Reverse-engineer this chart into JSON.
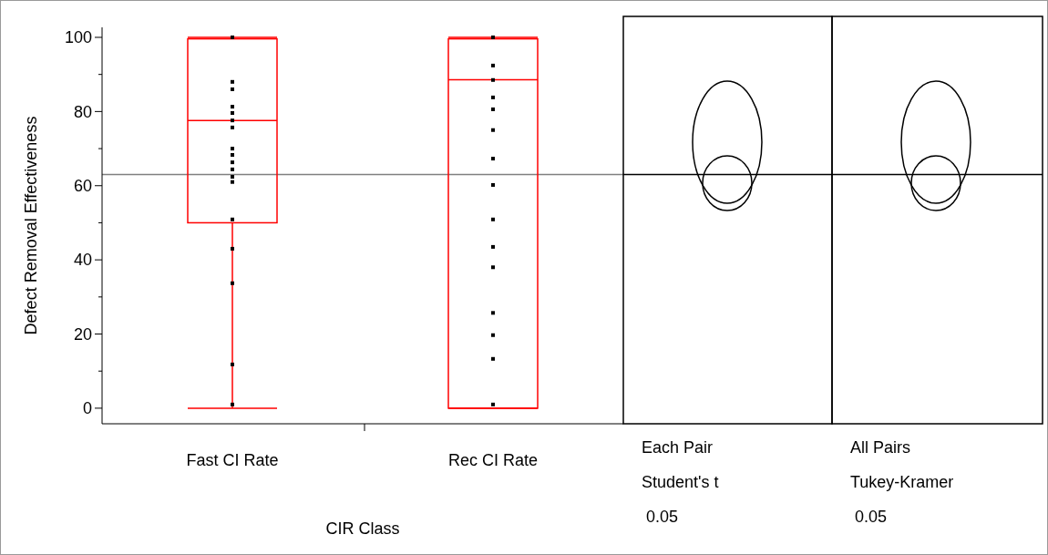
{
  "chart_data": {
    "type": "box",
    "xlabel": "CIR Class",
    "ylabel": "Defect Removal Effectiveness",
    "categories": [
      "Fast CI Rate",
      "Rec CI Rate"
    ],
    "boxes": [
      {
        "low": 0,
        "q1": 50,
        "median": 77.6,
        "q3": 99.6,
        "high": 100
      },
      {
        "low": 0,
        "q1": 0,
        "median": 88.6,
        "q3": 99.6,
        "high": 100
      }
    ],
    "color": "#ff0000",
    "series": [
      {
        "type": "scatter",
        "color": "#000000",
        "x": [
          "Fast CI Rate",
          "Fast CI Rate",
          "Fast CI Rate",
          "Fast CI Rate",
          "Fast CI Rate",
          "Fast CI Rate",
          "Fast CI Rate",
          "Fast CI Rate",
          "Fast CI Rate",
          "Fast CI Rate",
          "Fast CI Rate",
          "Fast CI Rate",
          "Fast CI Rate",
          "Fast CI Rate",
          "Fast CI Rate",
          "Fast CI Rate",
          "Fast CI Rate",
          "Fast CI Rate"
        ],
        "values": [
          100,
          88,
          86,
          81.3,
          79.6,
          77.6,
          75.7,
          70,
          68.3,
          66.3,
          64.4,
          62.4,
          61,
          50.9,
          43,
          33.7,
          11.8,
          1
        ]
      },
      {
        "type": "scatter",
        "color": "#000000",
        "x": [
          "Rec CI Rate",
          "Rec CI Rate",
          "Rec CI Rate",
          "Rec CI Rate",
          "Rec CI Rate",
          "Rec CI Rate",
          "Rec CI Rate",
          "Rec CI Rate",
          "Rec CI Rate",
          "Rec CI Rate",
          "Rec CI Rate",
          "Rec CI Rate",
          "Rec CI Rate",
          "Rec CI Rate",
          "Rec CI Rate"
        ],
        "values": [
          100,
          92.4,
          88.5,
          83.8,
          80.6,
          75,
          67.3,
          60.2,
          50.9,
          43.5,
          38,
          25.7,
          19.7,
          13.3,
          1
        ]
      }
    ],
    "marker": "square",
    "ylim": [
      -4.2,
      102.7
    ],
    "yticks": [
      0,
      {
        "value": 10,
        "label": null
      },
      20,
      {
        "value": 30,
        "label": null
      },
      40,
      {
        "value": 50,
        "label": null
      },
      60,
      {
        "value": 70,
        "label": null
      },
      80,
      {
        "value": 90,
        "label": null
      },
      100
    ],
    "ref_lines": [
      {
        "axis": "y",
        "value": 63,
        "color": "#808080"
      }
    ],
    "annotations": [
      "Each Pair\nStudent's t\n 0.05",
      "All Pairs\nTukey-Kramer\n 0.05"
    ],
    "grid": false
  }
}
